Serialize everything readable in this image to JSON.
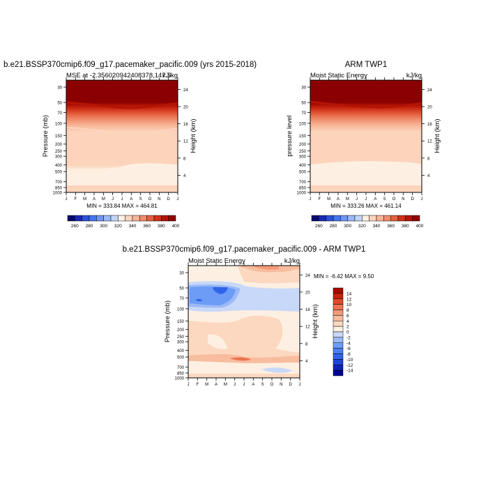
{
  "left_panel": {
    "title": "b.e21.BSSP370cmip6.f09_g17.pacemaker_pacific.009 (yrs 2015-2018)",
    "subtitle_left": "MSE at -2.356020942408378,147.5",
    "subtitle_right": "kJ/kg",
    "ylabel": "Pressure (mb)",
    "ylabel_right": "Height (km)",
    "minmax": "MIN = 333.84 MAX = 464.81"
  },
  "right_panel": {
    "title": "ARM TWP1",
    "subtitle_left": "Moist Static Energy",
    "subtitle_right": "kJ/kg",
    "ylabel": "pressure level",
    "ylabel_right": "Height (km)",
    "minmax": "MIN = 333.26 MAX = 461.14"
  },
  "diff_panel": {
    "title": "b.e21.BSSP370cmip6.f09_g17.pacemaker_pacific.009 - ARM TWP1",
    "subtitle_left": "Moist Static Energy",
    "subtitle_right": "kJ/kg",
    "ylabel": "Pressure (mb)",
    "ylabel_right": "Height (km)",
    "minmax": "MIN =  -6.42 MAX =    9.50"
  },
  "months": [
    "J",
    "F",
    "M",
    "A",
    "M",
    "J",
    "J",
    "A",
    "S",
    "O",
    "N",
    "D",
    "J"
  ],
  "pressure_ticks": [
    "30",
    "50",
    "70",
    "100",
    "150",
    "200",
    "250",
    "300",
    "400",
    "500",
    "700",
    "850",
    "1000"
  ],
  "height_ticks_km": [
    "24",
    "20",
    "16",
    "12",
    "8",
    "4"
  ],
  "colorbar_mse": {
    "colors": [
      "#08086e",
      "#1c2ab4",
      "#2c52dc",
      "#4674f0",
      "#6e96f4",
      "#9ab8f8",
      "#c2d4f8",
      "#fdf0e2",
      "#fcd4bc",
      "#f8b496",
      "#f08c6c",
      "#e4603e",
      "#d03218",
      "#b41404",
      "#900000"
    ],
    "labels": [
      "260",
      "280",
      "300",
      "320",
      "340",
      "360",
      "380",
      "400"
    ]
  },
  "colorbar_diff": {
    "colors": [
      "#000090",
      "#0c24b4",
      "#1c44d4",
      "#3064e8",
      "#4a80f2",
      "#6c9cf6",
      "#9cbaf8",
      "#c8d8f8",
      "#fcf0e2",
      "#fcd8c0",
      "#f8bc9e",
      "#f49a78",
      "#ec7450",
      "#dc4c2c",
      "#c42410",
      "#a40c00"
    ],
    "labels": [
      "14",
      "12",
      "10",
      "8",
      "6",
      "4",
      "2",
      "0",
      "-2",
      "-4",
      "-6",
      "-8",
      "-10",
      "-12",
      "-14"
    ]
  },
  "chart_data": [
    {
      "type": "heatmap",
      "title": "b.e21.BSSP370cmip6.f09_g17.pacemaker_pacific.009 (yrs 2015-2018)",
      "subtitle": "MSE at -2.356020942408378,147.5",
      "units": "kJ/kg",
      "x": [
        "J",
        "F",
        "M",
        "A",
        "M",
        "J",
        "J",
        "A",
        "S",
        "O",
        "N",
        "D",
        "J"
      ],
      "y": [
        30,
        50,
        70,
        100,
        150,
        200,
        250,
        300,
        400,
        500,
        700,
        850,
        1000
      ],
      "ylabel": "Pressure (mb)",
      "min": 333.84,
      "max": 464.81,
      "contour_levels": [
        260,
        270,
        280,
        290,
        300,
        310,
        320,
        330,
        340,
        350,
        360,
        370,
        380,
        390,
        400
      ],
      "approx_levels_by_pressure": {
        "30": 400,
        "50": 395,
        "70": 380,
        "100": 355,
        "150": 345,
        "200": 340,
        "300": 340,
        "400": 338,
        "500": 335,
        "700": 335,
        "850": 335,
        "1000": 340
      }
    },
    {
      "type": "heatmap",
      "title": "ARM TWP1",
      "subtitle": "Moist Static Energy",
      "units": "kJ/kg",
      "x": [
        "J",
        "F",
        "M",
        "A",
        "M",
        "J",
        "J",
        "A",
        "S",
        "O",
        "N",
        "D",
        "J"
      ],
      "y": [
        30,
        50,
        70,
        100,
        150,
        200,
        250,
        300,
        400,
        500,
        700,
        850,
        1000
      ],
      "ylabel": "pressure level",
      "min": 333.26,
      "max": 461.14,
      "contour_levels": [
        260,
        270,
        280,
        290,
        300,
        310,
        320,
        330,
        340,
        350,
        360,
        370,
        380,
        390,
        400
      ],
      "approx_levels_by_pressure": {
        "30": 400,
        "50": 395,
        "70": 380,
        "100": 355,
        "150": 345,
        "200": 340,
        "300": 340,
        "400": 335,
        "500": 335,
        "700": 335,
        "850": 335,
        "1000": 340
      }
    },
    {
      "type": "heatmap",
      "title": "b.e21.BSSP370cmip6.f09_g17.pacemaker_pacific.009 - ARM TWP1",
      "subtitle": "Moist Static Energy",
      "units": "kJ/kg",
      "x": [
        "J",
        "F",
        "M",
        "A",
        "M",
        "J",
        "J",
        "A",
        "S",
        "O",
        "N",
        "D",
        "J"
      ],
      "y": [
        30,
        50,
        70,
        100,
        150,
        200,
        250,
        300,
        400,
        500,
        700,
        850,
        1000
      ],
      "ylabel": "Pressure (mb)",
      "min": -6.42,
      "max": 9.5,
      "contour_levels": [
        -14,
        -12,
        -10,
        -8,
        -6,
        -4,
        -2,
        0,
        2,
        4,
        6,
        8,
        10,
        12,
        14
      ],
      "approx_difference": {
        "30": [
          0,
          0,
          0,
          0,
          1,
          2,
          3,
          3,
          2,
          2,
          1,
          1,
          0
        ],
        "50": [
          -3,
          -3,
          -3,
          -4,
          -3,
          -2,
          -1,
          -1,
          -1,
          -1,
          -1,
          -1,
          -2
        ],
        "70": [
          -4,
          -4,
          -4,
          -5,
          -4,
          -3,
          -2,
          -2,
          -2,
          -2,
          -2,
          -2,
          -3
        ],
        "100": [
          -2,
          -2,
          -2,
          -2,
          -2,
          -2,
          -2,
          -2,
          -2,
          -2,
          -2,
          -2,
          -2
        ],
        "150": [
          0,
          0,
          0,
          0,
          0,
          0,
          0,
          0,
          0,
          0,
          0,
          0,
          0
        ],
        "200": [
          1,
          1,
          1,
          1,
          1,
          1,
          1,
          1,
          1,
          1,
          0,
          0,
          1
        ],
        "300": [
          2,
          2,
          2,
          2,
          2,
          3,
          3,
          3,
          3,
          2,
          1,
          1,
          1
        ],
        "400": [
          1,
          2,
          1,
          1,
          2,
          3,
          3,
          3,
          2,
          2,
          1,
          1,
          1
        ],
        "500": [
          2,
          2,
          3,
          3,
          3,
          3,
          3,
          3,
          3,
          3,
          3,
          2,
          2
        ],
        "700": [
          1,
          1,
          1,
          1,
          1,
          1,
          1,
          1,
          1,
          0,
          -1,
          0,
          0
        ],
        "850": [
          0,
          1,
          1,
          1,
          1,
          1,
          1,
          1,
          0,
          -1,
          -2,
          -1,
          0
        ],
        "1000": [
          1,
          1,
          1,
          1,
          1,
          1,
          1,
          1,
          1,
          1,
          0,
          0,
          1
        ]
      }
    }
  ]
}
